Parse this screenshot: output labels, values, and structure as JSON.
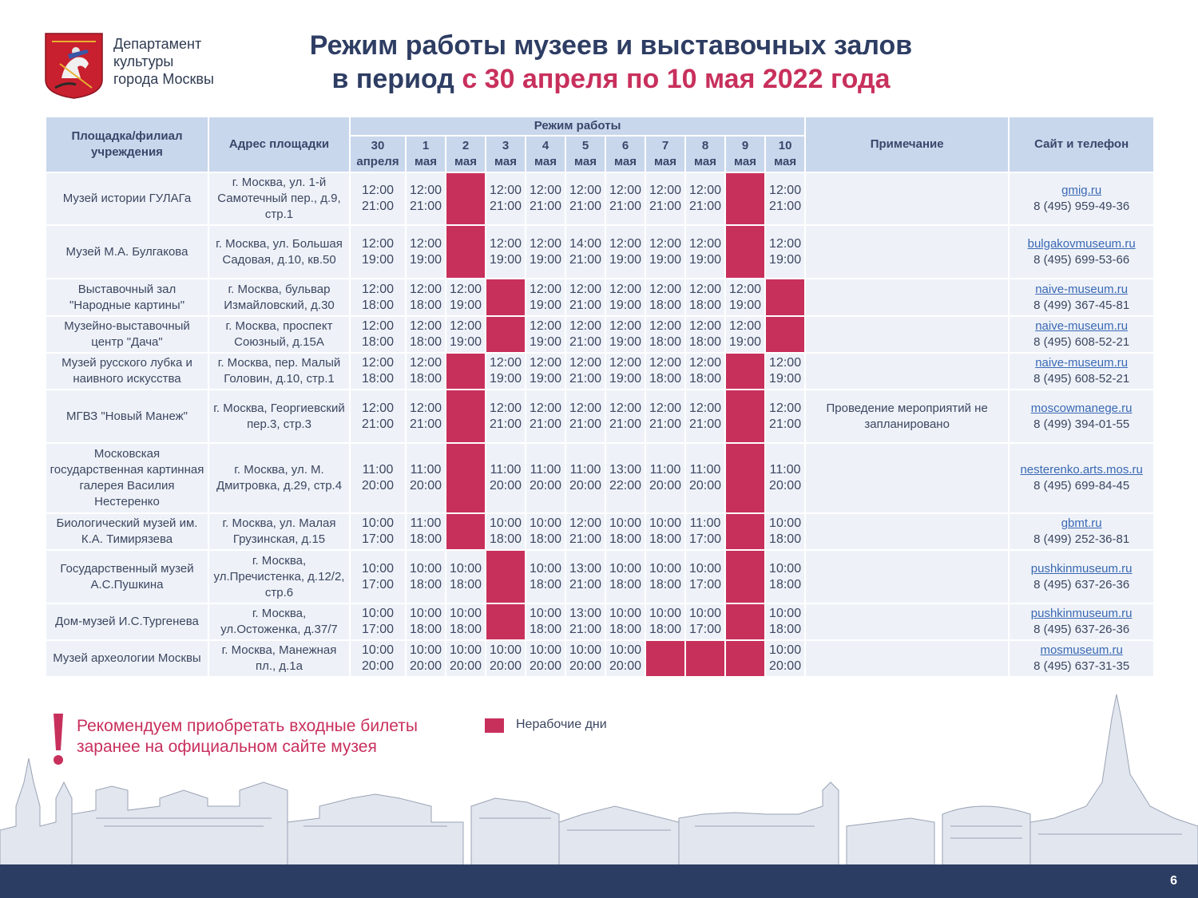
{
  "header": {
    "dept_lines": [
      "Департамент",
      "культуры",
      "города Москвы"
    ],
    "title_line1": "Режим работы музеев и выставочных залов",
    "title_line2_prefix": "в период ",
    "title_line2_accent": "с 30 апреля по 10 мая 2022 года"
  },
  "table": {
    "col_venue": "Площадка/филиал учреждения",
    "col_address": "Адрес площадки",
    "col_schedule": "Режим работы",
    "col_note": "Примечание",
    "col_site": "Сайт и телефон",
    "days": [
      [
        "30",
        "апреля"
      ],
      [
        "1",
        "мая"
      ],
      [
        "2",
        "мая"
      ],
      [
        "3",
        "мая"
      ],
      [
        "4",
        "мая"
      ],
      [
        "5",
        "мая"
      ],
      [
        "6",
        "мая"
      ],
      [
        "7",
        "мая"
      ],
      [
        "8",
        "мая"
      ],
      [
        "9",
        "мая"
      ],
      [
        "10",
        "мая"
      ]
    ],
    "rows": [
      {
        "venue": "Музей истории ГУЛАГа",
        "address": "г. Москва, ул. 1-й Самотечный пер., д.9, стр.1",
        "times": [
          [
            "12:00",
            "21:00"
          ],
          [
            "12:00",
            "21:00"
          ],
          null,
          [
            "12:00",
            "21:00"
          ],
          [
            "12:00",
            "21:00"
          ],
          [
            "12:00",
            "21:00"
          ],
          [
            "12:00",
            "21:00"
          ],
          [
            "12:00",
            "21:00"
          ],
          [
            "12:00",
            "21:00"
          ],
          null,
          [
            "12:00",
            "21:00"
          ]
        ],
        "note": "",
        "site": "gmig.ru",
        "phone": "8 (495) 959-49-36",
        "h": 64
      },
      {
        "venue": "Музей М.А. Булгакова",
        "address": "г. Москва, ул. Большая Садовая, д.10, кв.50",
        "times": [
          [
            "12:00",
            "19:00"
          ],
          [
            "12:00",
            "19:00"
          ],
          null,
          [
            "12:00",
            "19:00"
          ],
          [
            "12:00",
            "19:00"
          ],
          [
            "14:00",
            "21:00"
          ],
          [
            "12:00",
            "19:00"
          ],
          [
            "12:00",
            "19:00"
          ],
          [
            "12:00",
            "19:00"
          ],
          null,
          [
            "12:00",
            "19:00"
          ]
        ],
        "note": "",
        "site": "bulgakovmuseum.ru",
        "phone": "8 (495) 699-53-66",
        "h": 65
      },
      {
        "venue": "Выставочный зал \"Народные картины\"",
        "address": "г. Москва, бульвар Измайловский, д.30",
        "times": [
          [
            "12:00",
            "18:00"
          ],
          [
            "12:00",
            "18:00"
          ],
          [
            "12:00",
            "19:00"
          ],
          null,
          [
            "12:00",
            "19:00"
          ],
          [
            "12:00",
            "21:00"
          ],
          [
            "12:00",
            "19:00"
          ],
          [
            "12:00",
            "18:00"
          ],
          [
            "12:00",
            "18:00"
          ],
          [
            "12:00",
            "19:00"
          ],
          null
        ],
        "note": "",
        "site": "naive-museum.ru",
        "phone": "8 (499) 367-45-81",
        "h": 45
      },
      {
        "venue": "Музейно-выставочный центр \"Дача\"",
        "address": "г. Москва, проспект Союзный, д.15А",
        "times": [
          [
            "12:00",
            "18:00"
          ],
          [
            "12:00",
            "18:00"
          ],
          [
            "12:00",
            "19:00"
          ],
          null,
          [
            "12:00",
            "19:00"
          ],
          [
            "12:00",
            "21:00"
          ],
          [
            "12:00",
            "19:00"
          ],
          [
            "12:00",
            "18:00"
          ],
          [
            "12:00",
            "18:00"
          ],
          [
            "12:00",
            "19:00"
          ],
          null
        ],
        "note": "",
        "site": "naive-museum.ru",
        "phone": "8 (495) 608-52-21",
        "h": 44
      },
      {
        "venue": "Музей русского лубка и наивного искусства",
        "address": "г. Москва, пер. Малый Головин, д.10, стр.1",
        "times": [
          [
            "12:00",
            "18:00"
          ],
          [
            "12:00",
            "18:00"
          ],
          null,
          [
            "12:00",
            "19:00"
          ],
          [
            "12:00",
            "19:00"
          ],
          [
            "12:00",
            "21:00"
          ],
          [
            "12:00",
            "19:00"
          ],
          [
            "12:00",
            "18:00"
          ],
          [
            "12:00",
            "18:00"
          ],
          null,
          [
            "12:00",
            "19:00"
          ]
        ],
        "note": "",
        "site": "naive-museum.ru",
        "phone": "8 (495) 608-52-21",
        "h": 44
      },
      {
        "venue": "МГВЗ \"Новый Манеж\"",
        "address": "г. Москва, Георгиевский пер.3, стр.3",
        "times": [
          [
            "12:00",
            "21:00"
          ],
          [
            "12:00",
            "21:00"
          ],
          null,
          [
            "12:00",
            "21:00"
          ],
          [
            "12:00",
            "21:00"
          ],
          [
            "12:00",
            "21:00"
          ],
          [
            "12:00",
            "21:00"
          ],
          [
            "12:00",
            "21:00"
          ],
          [
            "12:00",
            "21:00"
          ],
          null,
          [
            "12:00",
            "21:00"
          ]
        ],
        "note": "Проведение мероприятий не запланировано",
        "site": "moscowmanege.ru",
        "phone": "8 (499) 394-01-55",
        "h": 65
      },
      {
        "venue": "Московская государственная картинная галерея Василия Нестеренко",
        "address": "г. Москва, ул. М. Дмитровка, д.29, стр.4",
        "times": [
          [
            "11:00",
            "20:00"
          ],
          [
            "11:00",
            "20:00"
          ],
          null,
          [
            "11:00",
            "20:00"
          ],
          [
            "11:00",
            "20:00"
          ],
          [
            "11:00",
            "20:00"
          ],
          [
            "13:00",
            "22:00"
          ],
          [
            "11:00",
            "20:00"
          ],
          [
            "11:00",
            "20:00"
          ],
          null,
          [
            "11:00",
            "20:00"
          ]
        ],
        "note": "",
        "site": "nesterenko.arts.mos.ru",
        "phone": "8 (495) 699-84-45",
        "h": 86
      },
      {
        "venue": "Биологический музей им. К.А. Тимирязева",
        "address": "г. Москва, ул. Малая Грузинская, д.15",
        "times": [
          [
            "10:00",
            "17:00"
          ],
          [
            "11:00",
            "18:00"
          ],
          null,
          [
            "10:00",
            "18:00"
          ],
          [
            "10:00",
            "18:00"
          ],
          [
            "12:00",
            "21:00"
          ],
          [
            "10:00",
            "18:00"
          ],
          [
            "10:00",
            "18:00"
          ],
          [
            "11:00",
            "17:00"
          ],
          null,
          [
            "10:00",
            "18:00"
          ]
        ],
        "note": "",
        "site": "gbmt.ru",
        "phone": "8 (499) 252-36-81",
        "h": 44
      },
      {
        "venue": "Государственный музей А.С.Пушкина",
        "address": "г. Москва, ул.Пречистенка, д.12/2, стр.6",
        "times": [
          [
            "10:00",
            "17:00"
          ],
          [
            "10:00",
            "18:00"
          ],
          [
            "10:00",
            "18:00"
          ],
          null,
          [
            "10:00",
            "18:00"
          ],
          [
            "13:00",
            "21:00"
          ],
          [
            "10:00",
            "18:00"
          ],
          [
            "10:00",
            "18:00"
          ],
          [
            "10:00",
            "17:00"
          ],
          null,
          [
            "10:00",
            "18:00"
          ]
        ],
        "note": "",
        "site": "pushkinmuseum.ru",
        "phone": "8 (495) 637-26-36",
        "h": 65
      },
      {
        "venue": "Дом-музей И.С.Тургенева",
        "address": "г. Москва, ул.Остоженка, д.37/7",
        "times": [
          [
            "10:00",
            "17:00"
          ],
          [
            "10:00",
            "18:00"
          ],
          [
            "10:00",
            "18:00"
          ],
          null,
          [
            "10:00",
            "18:00"
          ],
          [
            "13:00",
            "21:00"
          ],
          [
            "10:00",
            "18:00"
          ],
          [
            "10:00",
            "18:00"
          ],
          [
            "10:00",
            "17:00"
          ],
          null,
          [
            "10:00",
            "18:00"
          ]
        ],
        "note": "",
        "site": "pushkinmuseum.ru",
        "phone": "8 (495) 637-26-36",
        "h": 44
      },
      {
        "venue": "Музей археологии Москвы",
        "address": "г. Москва, Манежная пл., д.1а",
        "times": [
          [
            "10:00",
            "20:00"
          ],
          [
            "10:00",
            "20:00"
          ],
          [
            "10:00",
            "20:00"
          ],
          [
            "10:00",
            "20:00"
          ],
          [
            "10:00",
            "20:00"
          ],
          [
            "10:00",
            "20:00"
          ],
          [
            "10:00",
            "20:00"
          ],
          null,
          null,
          null,
          [
            "10:00",
            "20:00"
          ]
        ],
        "note": "",
        "site": "mosmuseum.ru",
        "phone": "8 (495) 637-31-35",
        "h": 44
      }
    ]
  },
  "footer_note": {
    "rec_lines": [
      "Рекомендуем приобретать входные билеты",
      "заранее на официальном сайте музея"
    ],
    "legend_label": "Нерабочие дни",
    "page_number": "6"
  },
  "colors": {
    "accent": "#c8305c",
    "navy": "#2c3d63",
    "header_bg": "#c9d7ec",
    "cell_bg": "#eef2f8"
  }
}
